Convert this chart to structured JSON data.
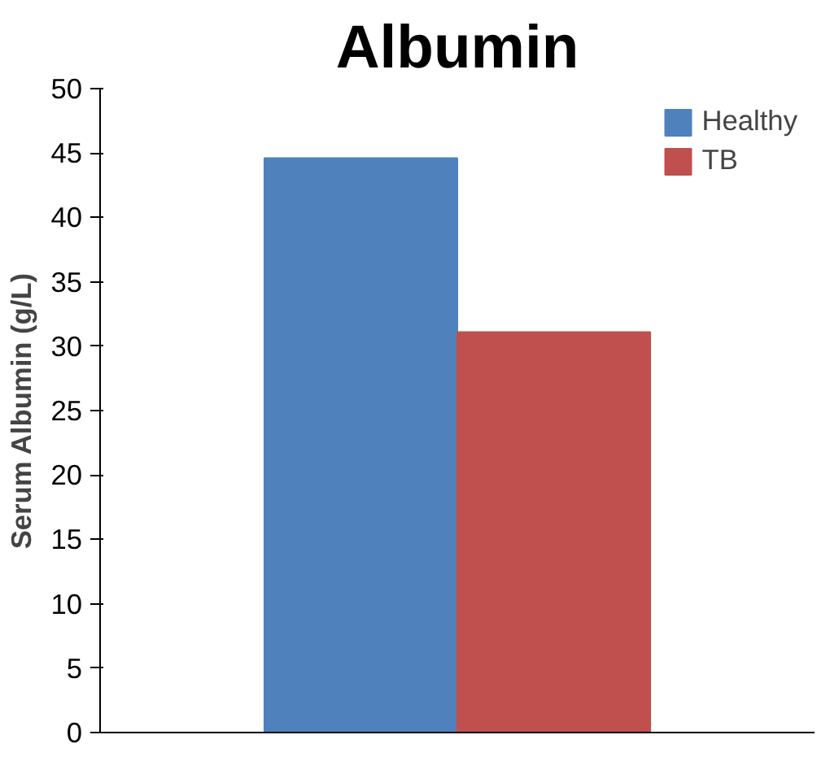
{
  "chart_data": {
    "type": "bar",
    "title": "Albumin",
    "ylabel": "Serum Albumin (g/L)",
    "categories": [
      null
    ],
    "series": [
      {
        "name": "Healthy",
        "color": "#4f81bd",
        "values": [
          44.6
        ]
      },
      {
        "name": "TB",
        "color": "#c0504d",
        "values": [
          31.1
        ]
      }
    ],
    "ylim": [
      0,
      50
    ],
    "yticks": [
      0,
      5,
      10,
      15,
      20,
      25,
      30,
      35,
      40,
      45,
      50
    ],
    "grid": false,
    "legend": "top right"
  }
}
